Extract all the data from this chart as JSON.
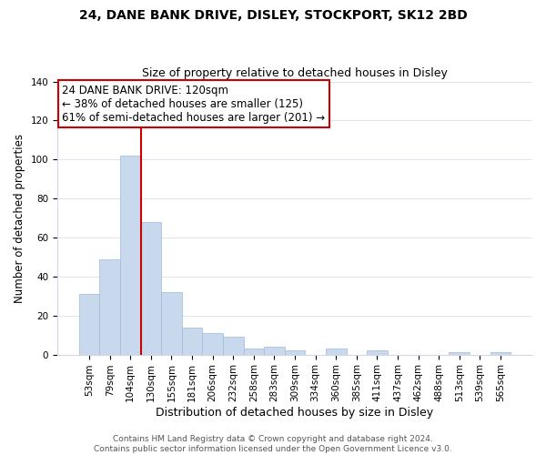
{
  "title": "24, DANE BANK DRIVE, DISLEY, STOCKPORT, SK12 2BD",
  "subtitle": "Size of property relative to detached houses in Disley",
  "xlabel": "Distribution of detached houses by size in Disley",
  "ylabel": "Number of detached properties",
  "bar_labels": [
    "53sqm",
    "79sqm",
    "104sqm",
    "130sqm",
    "155sqm",
    "181sqm",
    "206sqm",
    "232sqm",
    "258sqm",
    "283sqm",
    "309sqm",
    "334sqm",
    "360sqm",
    "385sqm",
    "411sqm",
    "437sqm",
    "462sqm",
    "488sqm",
    "513sqm",
    "539sqm",
    "565sqm"
  ],
  "bar_values": [
    31,
    49,
    102,
    68,
    32,
    14,
    11,
    9,
    3,
    4,
    2,
    0,
    3,
    0,
    2,
    0,
    0,
    0,
    1,
    0,
    1
  ],
  "bar_color": "#c9d9ed",
  "bar_edge_color": "#a0b8d8",
  "vline_x_index": 2.5,
  "vline_color": "#cc0000",
  "ylim": [
    0,
    140
  ],
  "yticks": [
    0,
    20,
    40,
    60,
    80,
    100,
    120,
    140
  ],
  "annotation_title": "24 DANE BANK DRIVE: 120sqm",
  "annotation_line1": "← 38% of detached houses are smaller (125)",
  "annotation_line2": "61% of semi-detached houses are larger (201) →",
  "footer_line1": "Contains HM Land Registry data © Crown copyright and database right 2024.",
  "footer_line2": "Contains public sector information licensed under the Open Government Licence v3.0.",
  "title_fontsize": 10,
  "subtitle_fontsize": 9,
  "xlabel_fontsize": 9,
  "ylabel_fontsize": 8.5,
  "tick_fontsize": 7.5,
  "annotation_fontsize": 8.5,
  "footer_fontsize": 6.5
}
